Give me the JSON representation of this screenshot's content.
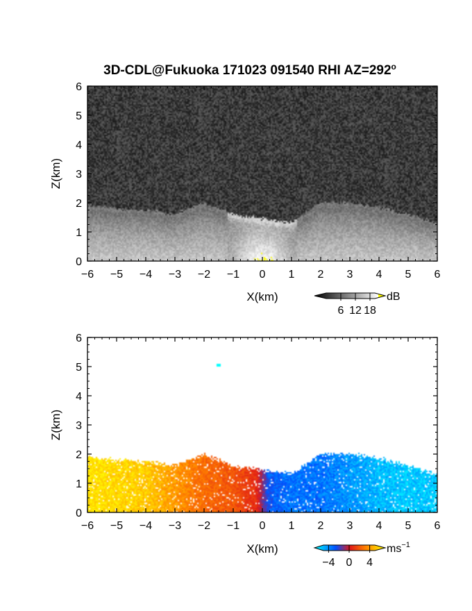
{
  "title": "3D-CDL@Fukuoka 171023 091540 RHI AZ=292",
  "title_superscript": "o",
  "chart_data": [
    {
      "type": "heatmap",
      "quantity": "dB",
      "xlabel": "X(km)",
      "ylabel": "Z(km)",
      "xlim": [
        -6,
        6
      ],
      "ylim": [
        0,
        6
      ],
      "xticks": [
        "-6",
        "-5",
        "-4",
        "-3",
        "-2",
        "-1",
        "0",
        "1",
        "2",
        "3",
        "4",
        "5",
        "6"
      ],
      "yticks": [
        "0",
        "1",
        "2",
        "3",
        "4",
        "5",
        "6"
      ],
      "colorbar": {
        "label": "dB",
        "ticks": [
          "6",
          "12",
          "18"
        ],
        "range": [
          0,
          20
        ],
        "colors": [
          "#000000",
          "#ffffff",
          "#ffff00"
        ]
      },
      "noise_color": "#3c3c3c",
      "cloud_top_km": [
        [
          -6,
          1.9
        ],
        [
          -5,
          1.8
        ],
        [
          -4,
          1.75
        ],
        [
          -3,
          1.6
        ],
        [
          -2,
          2.0
        ],
        [
          -1,
          1.6
        ],
        [
          0,
          1.45
        ],
        [
          1,
          1.3
        ],
        [
          2,
          2.0
        ],
        [
          3,
          2.0
        ],
        [
          4,
          1.85
        ],
        [
          5,
          1.6
        ],
        [
          6,
          1.3
        ]
      ],
      "echo_max_dB": 18
    },
    {
      "type": "heatmap",
      "quantity": "Doppler velocity",
      "xlabel": "X(km)",
      "ylabel": "Z(km)",
      "xlim": [
        -6,
        6
      ],
      "ylim": [
        0,
        6
      ],
      "xticks": [
        "-6",
        "-5",
        "-4",
        "-3",
        "-2",
        "-1",
        "0",
        "1",
        "2",
        "3",
        "4",
        "5",
        "6"
      ],
      "yticks": [
        "0",
        "1",
        "2",
        "3",
        "4",
        "5",
        "6"
      ],
      "colorbar": {
        "label": "ms",
        "label_superscript": "−1",
        "ticks": [
          "−4",
          "0",
          "4"
        ],
        "range": [
          -5,
          5
        ],
        "colors": [
          "#00ffff",
          "#0050ff",
          "#e01818",
          "#ff8000",
          "#ffff00"
        ]
      },
      "isolated_echo": {
        "x_km": -1.5,
        "z_km": 5.05
      },
      "velocity_profile_ms": [
        [
          -6,
          4.5
        ],
        [
          -4,
          4.0
        ],
        [
          -3,
          3.0
        ],
        [
          -2,
          2.0
        ],
        [
          -1,
          1.5
        ],
        [
          -0.2,
          0.5
        ],
        [
          0.2,
          -2.5
        ],
        [
          1,
          -3.0
        ],
        [
          2,
          -3.0
        ],
        [
          3,
          -3.5
        ],
        [
          4,
          -4.0
        ],
        [
          5,
          -4.2
        ]
      ]
    }
  ]
}
